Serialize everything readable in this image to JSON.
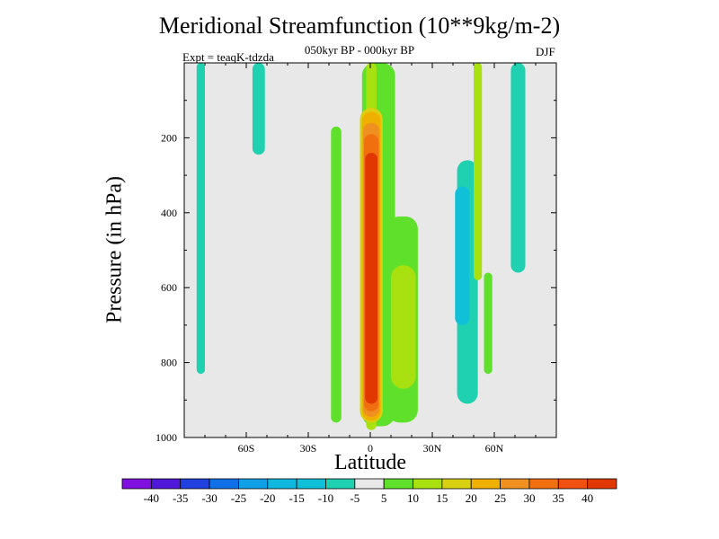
{
  "header": {
    "title": "Meridional Streamfunction (10**9kg/m-2)",
    "subtitle": "050kyr BP - 000kyr BP",
    "experiment": "Expt = teaqK-tdzda",
    "season": "DJF"
  },
  "chart_data": {
    "type": "heatmap",
    "title": "Meridional Streamfunction (10**9kg/m-2)",
    "subtitle": "050kyr BP - 000kyr BP",
    "xlabel": "Latitude",
    "ylabel": "Pressure (in hPa)",
    "xlim": [
      -90,
      90
    ],
    "ylim": [
      1000,
      0
    ],
    "x_ticks": [
      {
        "value": -60,
        "label": "60S"
      },
      {
        "value": -30,
        "label": "30S"
      },
      {
        "value": 0,
        "label": "0"
      },
      {
        "value": 30,
        "label": "30N"
      },
      {
        "value": 60,
        "label": "60N"
      }
    ],
    "y_ticks": [
      {
        "value": 200,
        "label": "200"
      },
      {
        "value": 400,
        "label": "400"
      },
      {
        "value": 600,
        "label": "600"
      },
      {
        "value": 800,
        "label": "800"
      },
      {
        "value": 1000,
        "label": "1000"
      }
    ],
    "background_level": "-5 to 5",
    "regions": [
      {
        "level": -10,
        "color": "#1fd1b0",
        "lat": [
          -84,
          -80
        ],
        "p": [
          0,
          830
        ]
      },
      {
        "level": -10,
        "color": "#1fd1b0",
        "lat": [
          -57,
          -51
        ],
        "p": [
          0,
          245
        ]
      },
      {
        "level": -10,
        "color": "#1fd1b0",
        "lat": [
          42,
          52
        ],
        "p": [
          260,
          910
        ]
      },
      {
        "level": -10,
        "color": "#1fd1b0",
        "lat": [
          68,
          75
        ],
        "p": [
          0,
          560
        ]
      },
      {
        "level": -15,
        "color": "#10c0d8",
        "lat": [
          41,
          48
        ],
        "p": [
          330,
          700
        ]
      },
      {
        "level": 5,
        "color": "#5fe02a",
        "lat": [
          -19,
          -14
        ],
        "p": [
          170,
          960
        ]
      },
      {
        "level": 5,
        "color": "#5fe02a",
        "lat": [
          -4,
          12
        ],
        "p": [
          0,
          970
        ]
      },
      {
        "level": 5,
        "color": "#5fe02a",
        "lat": [
          8,
          23
        ],
        "p": [
          410,
          960
        ]
      },
      {
        "level": 5,
        "color": "#5fe02a",
        "lat": [
          55,
          59
        ],
        "p": [
          560,
          830
        ]
      },
      {
        "level": 10,
        "color": "#a8e010",
        "lat": [
          10,
          22
        ],
        "p": [
          540,
          870
        ]
      },
      {
        "level": 10,
        "color": "#a8e010",
        "lat": [
          -2,
          3
        ],
        "p": [
          0,
          980
        ]
      },
      {
        "level": 10,
        "color": "#a8e010",
        "lat": [
          50,
          54
        ],
        "p": [
          0,
          580
        ]
      },
      {
        "level": 15,
        "color": "#d8d010",
        "lat": [
          -5,
          6
        ],
        "p": [
          120,
          960
        ]
      },
      {
        "level": 20,
        "color": "#f0b000",
        "lat": [
          -4,
          5
        ],
        "p": [
          130,
          955
        ]
      },
      {
        "level": 25,
        "color": "#f09020",
        "lat": [
          -3.5,
          4.5
        ],
        "p": [
          160,
          945
        ]
      },
      {
        "level": 30,
        "color": "#f07010",
        "lat": [
          -3,
          4
        ],
        "p": [
          190,
          930
        ]
      },
      {
        "level": 40,
        "color": "#e03800",
        "lat": [
          -2.5,
          3.5
        ],
        "p": [
          240,
          910
        ]
      }
    ],
    "colorbar": {
      "colors": [
        "#8010e0",
        "#5018d8",
        "#2040e0",
        "#1070e8",
        "#10a0e8",
        "#10b8e0",
        "#10c0d8",
        "#1fd1b0",
        "#e8e8e8",
        "#5fe02a",
        "#a8e010",
        "#d8d010",
        "#f0b000",
        "#f09020",
        "#f07010",
        "#f05010",
        "#e03800"
      ],
      "labels": [
        "-40",
        "-35",
        "-30",
        "-25",
        "-20",
        "-15",
        "-10",
        "-5",
        "5",
        "10",
        "15",
        "20",
        "25",
        "30",
        "35",
        "40"
      ]
    }
  }
}
